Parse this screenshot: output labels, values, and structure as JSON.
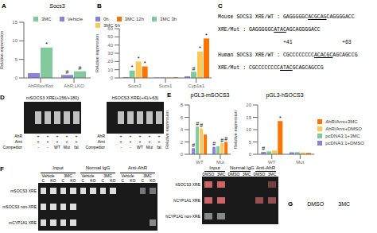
{
  "chart_data": [
    {
      "type": "bar",
      "title": "Socs3",
      "annotations": [
        {
          "text": "A"
        },
        {
          "text": "*",
          "series": "3MC",
          "category": "AhRflox/flox"
        },
        {
          "text": "#",
          "series": "Vehicle",
          "category": "AhR LKO"
        },
        {
          "text": "#",
          "series": "3MC",
          "category": "AhR LKO"
        }
      ],
      "categories": [
        "AhRflox/flox",
        "AhR LKO"
      ],
      "series": [
        {
          "name": "Vehicle",
          "color": "#8884d8",
          "values": [
            1.3,
            0.8
          ]
        },
        {
          "name": "3MC",
          "color": "#82ca9d",
          "values": [
            8.2,
            1.8
          ]
        }
      ],
      "ylabel": "Relative expression",
      "ylim": [
        0,
        15
      ],
      "yticks": [
        0,
        5,
        10,
        15
      ],
      "legend": "upper right"
    },
    {
      "type": "bar",
      "annotations": [
        {
          "text": "B"
        },
        {
          "text": "*",
          "series": "3MC 3h",
          "category": "Socs3"
        },
        {
          "text": "*",
          "series": "3MC 6h",
          "category": "Socs3"
        },
        {
          "text": "*",
          "series": "3MC 12h",
          "category": "Socs3"
        },
        {
          "text": "#",
          "series": "3MC 3h",
          "category": "Cyp1a1"
        },
        {
          "text": "*",
          "series": "3MC 6h",
          "category": "Cyp1a1"
        },
        {
          "text": "*",
          "series": "3MC 12h",
          "category": "Cyp1a1"
        }
      ],
      "categories": [
        "Socs3",
        "Socs1",
        "Cyp1a1"
      ],
      "series": [
        {
          "name": "0h",
          "color": "#8884d8",
          "values": [
            1.0,
            0.5,
            2.0
          ]
        },
        {
          "name": "3MC 3h",
          "color": "#82ca9d",
          "values": [
            9.0,
            0.6,
            7.5
          ]
        },
        {
          "name": "3MC 6h",
          "color": "#ffc658",
          "values": [
            20.0,
            0.7,
            32.0
          ]
        },
        {
          "name": "3MC 12h",
          "color": "#ff7300",
          "values": [
            14.0,
            0.8,
            48.0
          ]
        }
      ],
      "ylabel": "Relative expression",
      "ylim": [
        0,
        60
      ],
      "yticks": [
        0,
        10,
        20,
        30,
        40,
        50,
        60
      ],
      "legend": "upper left"
    },
    {
      "type": "text",
      "annotations": [
        {
          "text": "C"
        }
      ],
      "lines": [
        [
          {
            "text": "Mouse SOCS3 XRE/WT : GAGGGGGC"
          },
          {
            "text": "ACGCAG",
            "underline": true
          },
          {
            "text": "CAGGGGACC"
          }
        ],
        [
          {
            "text": "XRE/Mut : GAGGGGGC"
          },
          {
            "text": "ATAC",
            "underline": true
          },
          {
            "text": "AGCAGGGGACC"
          }
        ],
        [
          {
            "text": "+41"
          },
          {
            "text": "+63"
          }
        ],
        [
          {
            "text": "Human SOCS3 XRE/WT : CGCCCCCCCC"
          },
          {
            "text": "ACACGC",
            "underline": true
          },
          {
            "text": "AGCAGCCG"
          }
        ],
        [
          {
            "text": "XRE/Mut : CGCCCCCCCC"
          },
          {
            "text": "ATAC",
            "underline": true
          },
          {
            "text": "GCAGCAGCCG"
          }
        ]
      ]
    },
    {
      "type": "gel",
      "title": "mSOCS3 XRE(+156/+180)",
      "annotations": [
        {
          "text": "D"
        }
      ],
      "color": "#1a1a1a",
      "cells": [
        [
          null,
          "#c0c0c0",
          "#c0c0c0",
          "#c0c0c0",
          "#c0c0c0",
          "#c0c0c0"
        ]
      ],
      "lane_rows": [
        {
          "label": "AhR",
          "values": [
            "+",
            "+",
            "+",
            "+",
            "+"
          ]
        },
        {
          "label": "Arnt",
          "values": [
            "+",
            "+",
            "+",
            "+",
            "+"
          ]
        },
        {
          "label": "Competitor",
          "values": [
            "-",
            "-",
            "WT",
            "Mut",
            "fal"
          ]
        }
      ]
    },
    {
      "type": "gel",
      "title": "hSOCS3 XRE(+41/+63)",
      "color": "#1a1a1a",
      "cells": [
        [
          null,
          "#c0c0c0",
          "#c0c0c0",
          "#c0c0c0",
          "#c0c0c0",
          "#c0c0c0"
        ]
      ],
      "lane_rows": [
        {
          "label": "AhR",
          "values": [
            "+",
            "+",
            "+",
            "+",
            "+"
          ]
        },
        {
          "label": "Arnt",
          "values": [
            "+",
            "+",
            "+",
            "+",
            "+"
          ]
        },
        {
          "label": "Competitor",
          "values": [
            "-",
            "-",
            "WT",
            "Mut",
            "fal"
          ]
        }
      ]
    },
    {
      "type": "bar",
      "title": "pGL3-mSOCS3",
      "annotations": [
        {
          "text": "E"
        },
        {
          "text": "#",
          "series": "pcDNA3.1+DMSO",
          "category": "WT"
        },
        {
          "text": "#",
          "series": "pcDNA3.1+3MC",
          "category": "WT"
        },
        {
          "text": "#",
          "series": "AhR/Arnt+DMSO",
          "category": "WT"
        },
        {
          "text": "#",
          "series": "pcDNA3.1+DMSO",
          "category": "Mut"
        },
        {
          "text": "#",
          "series": "AhR/Arnt+DMSO",
          "category": "Mut"
        },
        {
          "text": "#",
          "series": "AhR/Arnt+3MC",
          "category": "Mut"
        }
      ],
      "categories": [
        "WT",
        "Mut"
      ],
      "series": [
        {
          "name": "pcDNA3.1+DMSO",
          "color": "#8884d8",
          "values": [
            1.0,
            1.2
          ]
        },
        {
          "name": "pcDNA3.1+3MC",
          "color": "#82ca9d",
          "values": [
            4.5,
            1.3
          ]
        },
        {
          "name": "AhR/Arnt+DMSO",
          "color": "#ffc658",
          "values": [
            4.2,
            1.8
          ]
        },
        {
          "name": "AhR/Arnt+3MC",
          "color": "#ff7300",
          "values": [
            3.2,
            2.0
          ]
        }
      ],
      "ylabel": "Relative expression",
      "ylim": [
        0,
        8
      ],
      "yticks": [
        0,
        2,
        4,
        6,
        8
      ]
    },
    {
      "type": "bar",
      "title": "pGL3-hSOCS3",
      "annotations": [
        {
          "text": "#",
          "series": "pcDNA3.1+DMSO",
          "category": "WT"
        },
        {
          "text": "*",
          "series": "AhR/Arnt+3MC",
          "category": "WT"
        }
      ],
      "categories": [
        "WT",
        "Mut"
      ],
      "series": [
        {
          "name": "pcDNA3.1+DMSO",
          "color": "#8884d8",
          "values": [
            1.0,
            0.8
          ]
        },
        {
          "name": "pcDNA3.1+3MC",
          "color": "#82ca9d",
          "values": [
            1.2,
            0.9
          ]
        },
        {
          "name": "AhR/Arnt+DMSO",
          "color": "#ffc658",
          "values": [
            1.5,
            0.7
          ]
        },
        {
          "name": "AhR/Arnt+3MC",
          "color": "#ff7300",
          "values": [
            13.5,
            0.6
          ]
        }
      ],
      "ylabel": "Relative expression",
      "ylim": [
        0,
        20
      ],
      "yticks": [
        0,
        5,
        10,
        15,
        20
      ],
      "legend": "right"
    },
    {
      "type": "gel",
      "annotations": [
        {
          "text": "F"
        }
      ],
      "color": "#1a1a1a",
      "groups": [
        "Input",
        "Normal IgG",
        "Anti-AhR"
      ],
      "subgroups": [
        "Vehicle",
        "3MC",
        "Vehicle",
        "3MC",
        "Vehicle",
        "3MC"
      ],
      "lanes": [
        "C",
        "KO",
        "C",
        "KO",
        "C",
        "KO",
        "C",
        "KO",
        "C",
        "KO",
        "C",
        "KO"
      ],
      "row_labels": [
        "mSOCS3 XRE",
        "mSOCS3 non-XRE",
        "mCYP1A1 XRE"
      ],
      "cells": [
        [
          "#dddddd",
          "#dddddd",
          "#dddddd",
          "#dddddd",
          "#dddddd",
          "#dddddd",
          "#dddddd",
          "#dddddd",
          null,
          null,
          "#777777",
          "#777777"
        ],
        [
          "#dddddd",
          "#dddddd",
          "#dddddd",
          "#dddddd",
          null,
          null,
          null,
          null,
          null,
          null,
          null,
          null
        ],
        [
          "#dddddd",
          "#dddddd",
          "#dddddd",
          "#dddddd",
          null,
          null,
          null,
          null,
          null,
          null,
          null,
          "#888888"
        ]
      ]
    },
    {
      "type": "gel",
      "color": "#1a1a1a",
      "groups": [
        "Input",
        "Normal IgG",
        "Anti-AhR"
      ],
      "subgroups": [
        "DMSO",
        "3MC",
        "DMSO",
        "3MC",
        "DMSO",
        "3MC"
      ],
      "row_labels": [
        "hSOCS3 XRE",
        "hCYP1A1 XRE",
        "hCYP1A1 non-XRE"
      ],
      "cells": [
        [
          "#cc6666",
          "#cc6666",
          null,
          null,
          null,
          "#734040"
        ],
        [
          "#cc6666",
          "#cc6666",
          null,
          null,
          "#974f4f",
          "#974f4f"
        ],
        [
          "#888888",
          "#888888",
          null,
          null,
          null,
          null
        ]
      ]
    },
    {
      "type": "text",
      "annotations": [
        {
          "text": "G"
        },
        {
          "text": "DMSO"
        },
        {
          "text": "3MC"
        }
      ]
    }
  ]
}
